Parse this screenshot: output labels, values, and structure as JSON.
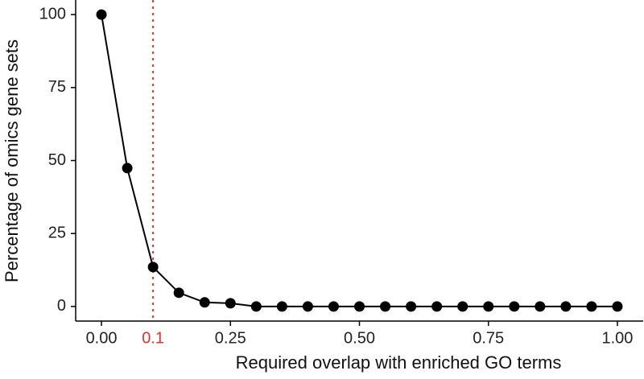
{
  "chart_data": {
    "type": "line",
    "x_label": "Required overlap with enriched GO terms",
    "y_label": "Percentage of omics gene sets",
    "x": [
      0,
      0.05,
      0.1,
      0.15,
      0.2,
      0.25,
      0.3,
      0.35,
      0.4,
      0.45,
      0.5,
      0.55,
      0.6,
      0.65,
      0.7,
      0.75,
      0.8,
      0.85,
      0.9,
      0.95,
      1.0
    ],
    "series": [
      {
        "color": "#000000",
        "values": [
          100,
          47.4,
          13.5,
          4.7,
          1.4,
          1.1,
          0,
          0,
          0,
          0,
          0,
          0,
          0,
          0,
          0,
          0,
          0,
          0,
          0,
          0,
          0
        ]
      }
    ],
    "xlim": [
      -0.05,
      1.05
    ],
    "ylim": [
      -5,
      105
    ],
    "xticks": [
      {
        "value": 0,
        "label": "0.00"
      },
      {
        "value": 0.25,
        "label": "0.25"
      },
      {
        "value": 0.5,
        "label": "0.50"
      },
      {
        "value": 0.75,
        "label": "0.75"
      },
      {
        "value": 1,
        "label": "1.00"
      }
    ],
    "yticks": [
      0,
      25,
      50,
      75,
      100
    ],
    "reference_line": {
      "x": 0.1,
      "color": "#e8312a"
    }
  }
}
